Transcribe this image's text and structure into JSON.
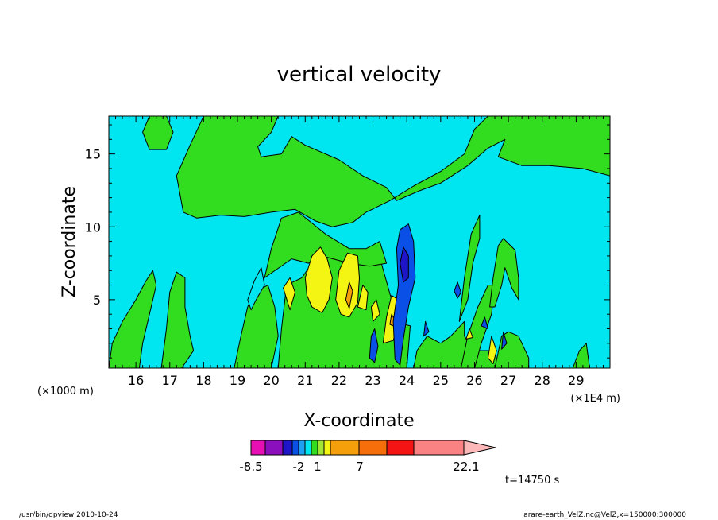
{
  "chart_data": {
    "type": "heatmap",
    "title": "vertical velocity",
    "xlabel": "X-coordinate",
    "ylabel": "Z-coordinate",
    "x_unit_left": "(×1000 m)",
    "x_unit_right": "(×1E4 m)",
    "x_range": [
      15.2,
      30.0
    ],
    "y_range": [
      0.3,
      17.6
    ],
    "x_ticks": [
      16,
      17,
      18,
      19,
      20,
      21,
      22,
      23,
      24,
      25,
      26,
      27,
      28,
      29
    ],
    "y_ticks": [
      5,
      10,
      15
    ],
    "grid": false,
    "colorbar": {
      "labels": [
        {
          "value": -8.5,
          "text": "-8.5"
        },
        {
          "value": -2,
          "text": "-2"
        },
        {
          "value": 1,
          "text": "1"
        },
        {
          "value": 7,
          "text": "7"
        },
        {
          "value": 22.1,
          "text": "22.1"
        }
      ],
      "colors": [
        "#e60fb4",
        "#8c0fbe",
        "#1e14c8",
        "#0a50e6",
        "#1ea0f0",
        "#00e6f0",
        "#32dc1e",
        "#a0e632",
        "#f5f514",
        "#f5a00a",
        "#f56e0a",
        "#f51414",
        "#fa8282"
      ],
      "extend": "max"
    },
    "time_label": "t=14750 s",
    "regions": [
      {
        "level": "green",
        "points": [
          [
            15.2,
            0.3
          ],
          [
            15.3,
            2
          ],
          [
            15.6,
            3.5
          ],
          [
            16,
            5
          ],
          [
            16.3,
            6.3
          ],
          [
            16.5,
            7
          ],
          [
            16.6,
            6
          ],
          [
            16.4,
            4
          ],
          [
            16.2,
            2
          ],
          [
            16.1,
            0.3
          ]
        ]
      },
      {
        "level": "green",
        "points": [
          [
            16.75,
            0.3
          ],
          [
            16.9,
            3
          ],
          [
            17.0,
            5.5
          ],
          [
            17.2,
            6.9
          ],
          [
            17.45,
            6.5
          ],
          [
            17.45,
            4.5
          ],
          [
            17.6,
            2.5
          ],
          [
            17.7,
            1.5
          ],
          [
            17.35,
            0.3
          ]
        ]
      },
      {
        "level": "green",
        "points": [
          [
            18.9,
            0.3
          ],
          [
            19.1,
            2.5
          ],
          [
            19.3,
            4.5
          ],
          [
            19.5,
            5.5
          ],
          [
            19.9,
            6
          ],
          [
            20.1,
            4.5
          ],
          [
            20.2,
            2.5
          ],
          [
            20.0,
            0.3
          ]
        ]
      },
      {
        "level": "green",
        "points": [
          [
            20.2,
            0.3
          ],
          [
            20.3,
            3
          ],
          [
            20.45,
            6.0
          ],
          [
            20.9,
            6.5
          ],
          [
            21.2,
            7.5
          ],
          [
            21.5,
            9.5
          ],
          [
            22.0,
            8.5
          ],
          [
            22.5,
            7.5
          ],
          [
            22.9,
            7.3
          ],
          [
            23.25,
            7.5
          ],
          [
            23.55,
            5.0
          ],
          [
            23.65,
            3.5
          ],
          [
            24.1,
            3.2
          ],
          [
            24.0,
            0.3
          ]
        ]
      },
      {
        "level": "green",
        "points": [
          [
            24.2,
            0.3
          ],
          [
            24.3,
            1.5
          ],
          [
            24.6,
            2.5
          ],
          [
            25.0,
            2.0
          ],
          [
            25.3,
            2.5
          ],
          [
            25.7,
            3.5
          ],
          [
            25.7,
            2.5
          ],
          [
            26.0,
            1.5
          ],
          [
            26.6,
            1.5
          ],
          [
            26.7,
            0.3
          ]
        ]
      },
      {
        "level": "green",
        "points": [
          [
            25.6,
            0.3
          ],
          [
            25.8,
            2.5
          ],
          [
            26.1,
            4.5
          ],
          [
            26.4,
            6.0
          ],
          [
            26.6,
            6.0
          ],
          [
            26.5,
            4.0
          ],
          [
            26.2,
            2.0
          ],
          [
            26.0,
            0.3
          ]
        ]
      },
      {
        "level": "green",
        "points": [
          [
            26.6,
            0.3
          ],
          [
            26.8,
            2.5
          ],
          [
            27.0,
            2.8
          ],
          [
            27.3,
            2.5
          ],
          [
            27.6,
            1.0
          ],
          [
            27.6,
            0.3
          ]
        ]
      },
      {
        "level": "green",
        "points": [
          [
            25.55,
            3.5
          ],
          [
            25.7,
            6.5
          ],
          [
            25.9,
            9.5
          ],
          [
            26.15,
            10.8
          ],
          [
            26.15,
            9.2
          ],
          [
            25.95,
            7.5
          ],
          [
            25.8,
            5.0
          ]
        ]
      },
      {
        "level": "green",
        "points": [
          [
            26.45,
            4.5
          ],
          [
            26.55,
            6.5
          ],
          [
            26.7,
            8.7
          ],
          [
            26.85,
            9.2
          ],
          [
            27.2,
            8.4
          ],
          [
            27.3,
            6.5
          ],
          [
            27.3,
            5.0
          ],
          [
            27.1,
            5.8
          ],
          [
            26.9,
            7.2
          ],
          [
            26.8,
            6.0
          ],
          [
            26.6,
            4.5
          ]
        ]
      },
      {
        "level": "green",
        "points": [
          [
            28.9,
            0.3
          ],
          [
            29.1,
            1.5
          ],
          [
            29.3,
            2.0
          ],
          [
            29.4,
            0.3
          ]
        ]
      },
      {
        "level": "green",
        "points": [
          [
            17.2,
            13.5
          ],
          [
            17.4,
            11.0
          ],
          [
            17.8,
            10.6
          ],
          [
            18.5,
            10.8
          ],
          [
            19.2,
            10.7
          ],
          [
            20.0,
            11.0
          ],
          [
            20.7,
            11.2
          ],
          [
            21.3,
            10.4
          ],
          [
            21.8,
            10.0
          ],
          [
            22.4,
            10.3
          ],
          [
            22.8,
            11.0
          ],
          [
            23.5,
            11.8
          ],
          [
            24.2,
            12.8
          ],
          [
            25.0,
            13.8
          ],
          [
            25.7,
            15.0
          ],
          [
            26.0,
            16.7
          ],
          [
            26.4,
            17.6
          ],
          [
            30.0,
            17.6
          ],
          [
            30.0,
            13.5
          ],
          [
            29.2,
            14.0
          ],
          [
            28.2,
            14.2
          ],
          [
            27.4,
            14.2
          ],
          [
            26.7,
            14.8
          ],
          [
            26.9,
            16.0
          ],
          [
            26.4,
            15.4
          ],
          [
            25.8,
            14.2
          ],
          [
            25.0,
            13.0
          ],
          [
            24.4,
            12.5
          ],
          [
            23.7,
            11.8
          ],
          [
            23.4,
            12.7
          ],
          [
            22.7,
            13.5
          ],
          [
            22.0,
            14.6
          ],
          [
            21.0,
            15.6
          ],
          [
            20.6,
            16.2
          ],
          [
            20.3,
            15.0
          ],
          [
            19.7,
            14.8
          ],
          [
            19.6,
            15.5
          ],
          [
            20.0,
            16.5
          ],
          [
            20.2,
            17.6
          ],
          [
            18.0,
            17.6
          ],
          [
            17.6,
            15.6
          ]
        ]
      },
      {
        "level": "green",
        "points": [
          [
            16.9,
            17.6
          ],
          [
            17.1,
            16.5
          ],
          [
            16.9,
            15.3
          ],
          [
            16.4,
            15.3
          ],
          [
            16.2,
            16.5
          ],
          [
            16.4,
            17.6
          ]
        ]
      },
      {
        "level": "green",
        "points": [
          [
            19.8,
            6.5
          ],
          [
            20.0,
            8.5
          ],
          [
            20.3,
            10.6
          ],
          [
            20.8,
            11.0
          ],
          [
            21.6,
            9.5
          ],
          [
            22.3,
            8.5
          ],
          [
            22.8,
            8.5
          ],
          [
            23.2,
            9.0
          ],
          [
            23.4,
            7.5
          ],
          [
            22.9,
            7.3
          ],
          [
            22.3,
            7.5
          ],
          [
            21.5,
            8.0
          ],
          [
            21.1,
            7.5
          ],
          [
            20.6,
            7.8
          ]
        ]
      },
      {
        "level": "cyan",
        "points": [
          [
            19.3,
            5.0
          ],
          [
            19.5,
            6.3
          ],
          [
            19.7,
            7.2
          ],
          [
            19.8,
            6.0
          ],
          [
            19.55,
            5.0
          ],
          [
            19.4,
            4.3
          ]
        ]
      },
      {
        "level": "yellow",
        "points": [
          [
            20.35,
            5.8
          ],
          [
            20.55,
            6.5
          ],
          [
            20.7,
            5.5
          ],
          [
            20.55,
            4.3
          ]
        ]
      },
      {
        "level": "yellow",
        "points": [
          [
            21.0,
            6.5
          ],
          [
            21.2,
            8.0
          ],
          [
            21.45,
            8.6
          ],
          [
            21.65,
            7.8
          ],
          [
            21.8,
            6.5
          ],
          [
            21.7,
            5.0
          ],
          [
            21.5,
            4.1
          ],
          [
            21.2,
            4.5
          ],
          [
            21.05,
            5.3
          ]
        ]
      },
      {
        "level": "yellow",
        "points": [
          [
            21.9,
            5.0
          ],
          [
            22.0,
            7.0
          ],
          [
            22.25,
            8.2
          ],
          [
            22.55,
            8.0
          ],
          [
            22.6,
            6.5
          ],
          [
            22.55,
            4.8
          ],
          [
            22.3,
            3.8
          ],
          [
            22.05,
            4.0
          ]
        ]
      },
      {
        "level": "yellow",
        "points": [
          [
            22.55,
            4.5
          ],
          [
            22.7,
            6.0
          ],
          [
            22.85,
            5.5
          ],
          [
            22.8,
            4.3
          ]
        ]
      },
      {
        "level": "yellow",
        "points": [
          [
            22.95,
            4.5
          ],
          [
            23.1,
            5.0
          ],
          [
            23.2,
            4.0
          ],
          [
            23.0,
            3.5
          ]
        ]
      },
      {
        "level": "yellow",
        "points": [
          [
            23.3,
            2.0
          ],
          [
            23.4,
            3.8
          ],
          [
            23.55,
            5.3
          ],
          [
            23.75,
            5.0
          ],
          [
            23.75,
            3.5
          ],
          [
            23.6,
            2.2
          ]
        ]
      },
      {
        "level": "yellow",
        "points": [
          [
            26.4,
            1.0
          ],
          [
            26.5,
            2.5
          ],
          [
            26.65,
            1.5
          ],
          [
            26.55,
            0.6
          ]
        ]
      },
      {
        "level": "yellow",
        "points": [
          [
            25.75,
            2.3
          ],
          [
            25.85,
            3.0
          ],
          [
            25.95,
            2.4
          ]
        ]
      },
      {
        "level": "orange",
        "points": [
          [
            22.2,
            5.0
          ],
          [
            22.3,
            6.2
          ],
          [
            22.4,
            5.6
          ],
          [
            22.3,
            4.4
          ]
        ]
      },
      {
        "level": "orange",
        "points": [
          [
            23.5,
            3.3
          ],
          [
            23.55,
            4.0
          ],
          [
            23.65,
            3.6
          ],
          [
            23.6,
            3.2
          ]
        ]
      },
      {
        "level": "blue",
        "points": [
          [
            23.7,
            8.5
          ],
          [
            23.8,
            9.8
          ],
          [
            24.05,
            10.2
          ],
          [
            24.2,
            9.0
          ],
          [
            24.25,
            6.5
          ],
          [
            24.05,
            4.5
          ],
          [
            23.9,
            2.3
          ],
          [
            23.8,
            0.5
          ],
          [
            23.65,
            0.9
          ],
          [
            23.6,
            3.5
          ],
          [
            23.75,
            6.0
          ]
        ]
      },
      {
        "level": "blue",
        "points": [
          [
            22.9,
            1.0
          ],
          [
            22.95,
            2.5
          ],
          [
            23.05,
            3.0
          ],
          [
            23.15,
            1.8
          ],
          [
            23.05,
            0.7
          ]
        ]
      },
      {
        "level": "blue",
        "points": [
          [
            24.5,
            2.5
          ],
          [
            24.55,
            3.5
          ],
          [
            24.65,
            2.8
          ]
        ]
      },
      {
        "level": "blue",
        "points": [
          [
            25.4,
            5.6
          ],
          [
            25.5,
            6.2
          ],
          [
            25.6,
            5.5
          ],
          [
            25.5,
            5.1
          ]
        ]
      },
      {
        "level": "blue",
        "points": [
          [
            26.8,
            1.6
          ],
          [
            26.85,
            2.8
          ],
          [
            26.95,
            2.0
          ]
        ]
      },
      {
        "level": "blue",
        "points": [
          [
            26.2,
            3.2
          ],
          [
            26.3,
            3.8
          ],
          [
            26.4,
            3.0
          ]
        ]
      },
      {
        "level": "darkblue",
        "points": [
          [
            23.8,
            7.5
          ],
          [
            23.9,
            8.6
          ],
          [
            24.05,
            8.0
          ],
          [
            24.05,
            6.5
          ],
          [
            23.9,
            6.2
          ]
        ]
      }
    ]
  },
  "footer": {
    "left": "/usr/bin/gpview   2010-10-24",
    "right": "arare-earth_VelZ.nc@VelZ,x=150000:300000"
  }
}
